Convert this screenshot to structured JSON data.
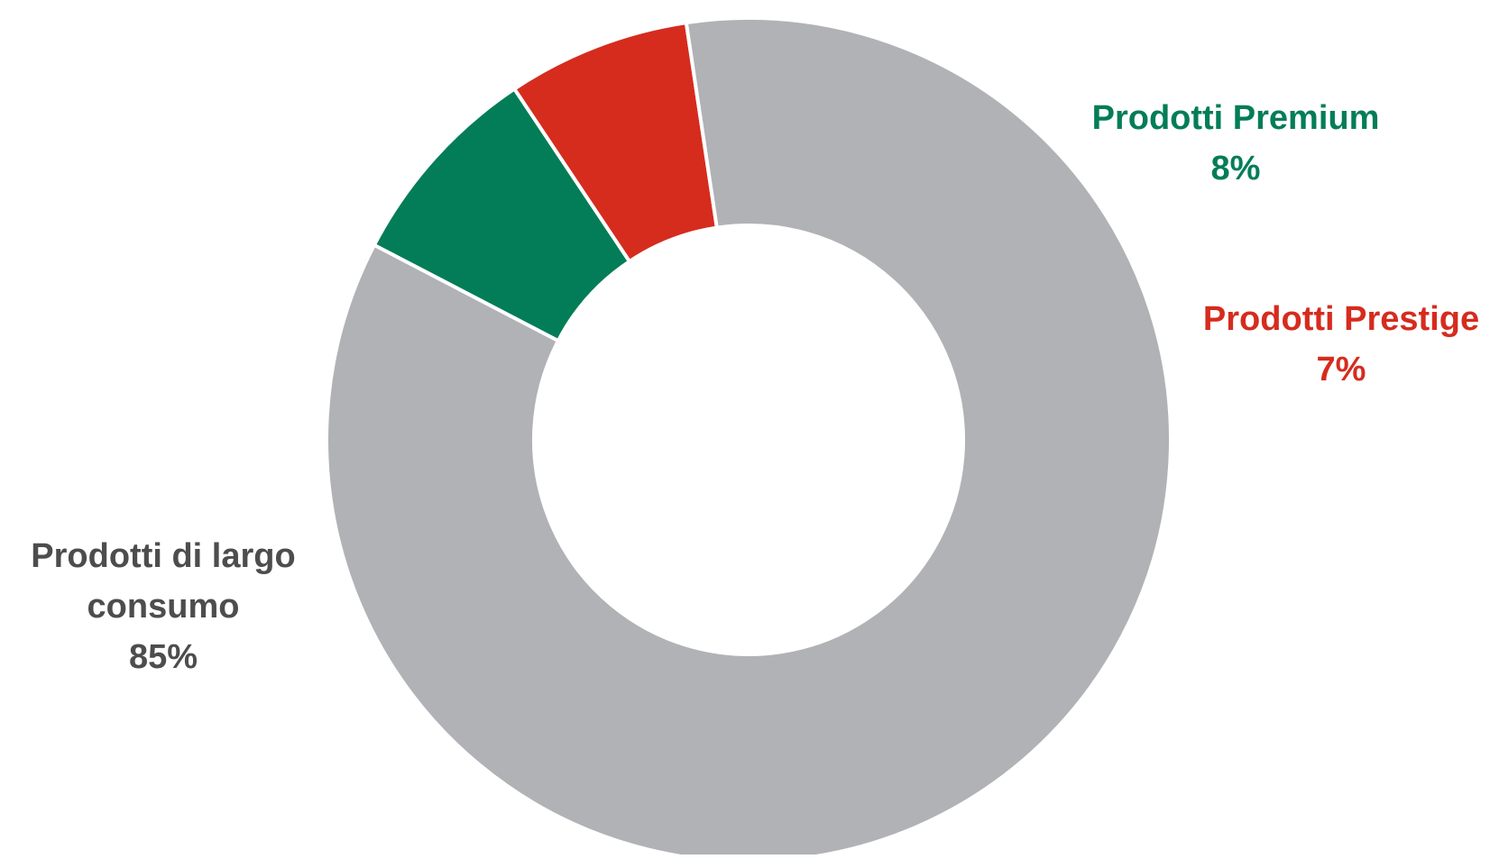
{
  "chart_data": {
    "type": "pie",
    "style": "donut",
    "slices": [
      {
        "label": "Prodotti Premium",
        "value": 8,
        "value_label": "8%",
        "color": "#037d57"
      },
      {
        "label": "Prodotti Prestige",
        "value": 7,
        "value_label": "7%",
        "color": "#d52c1e"
      },
      {
        "label": "Prodotti di largo consumo",
        "label_lines": [
          "Prodotti di largo",
          "consumo"
        ],
        "value": 85,
        "value_label": "85%",
        "color": "#b1b2b5"
      }
    ],
    "label_colors": [
      "#037d57",
      "#d52c1e",
      "#4d4d4d"
    ],
    "separator_color": "#ffffff",
    "legend": "none"
  }
}
